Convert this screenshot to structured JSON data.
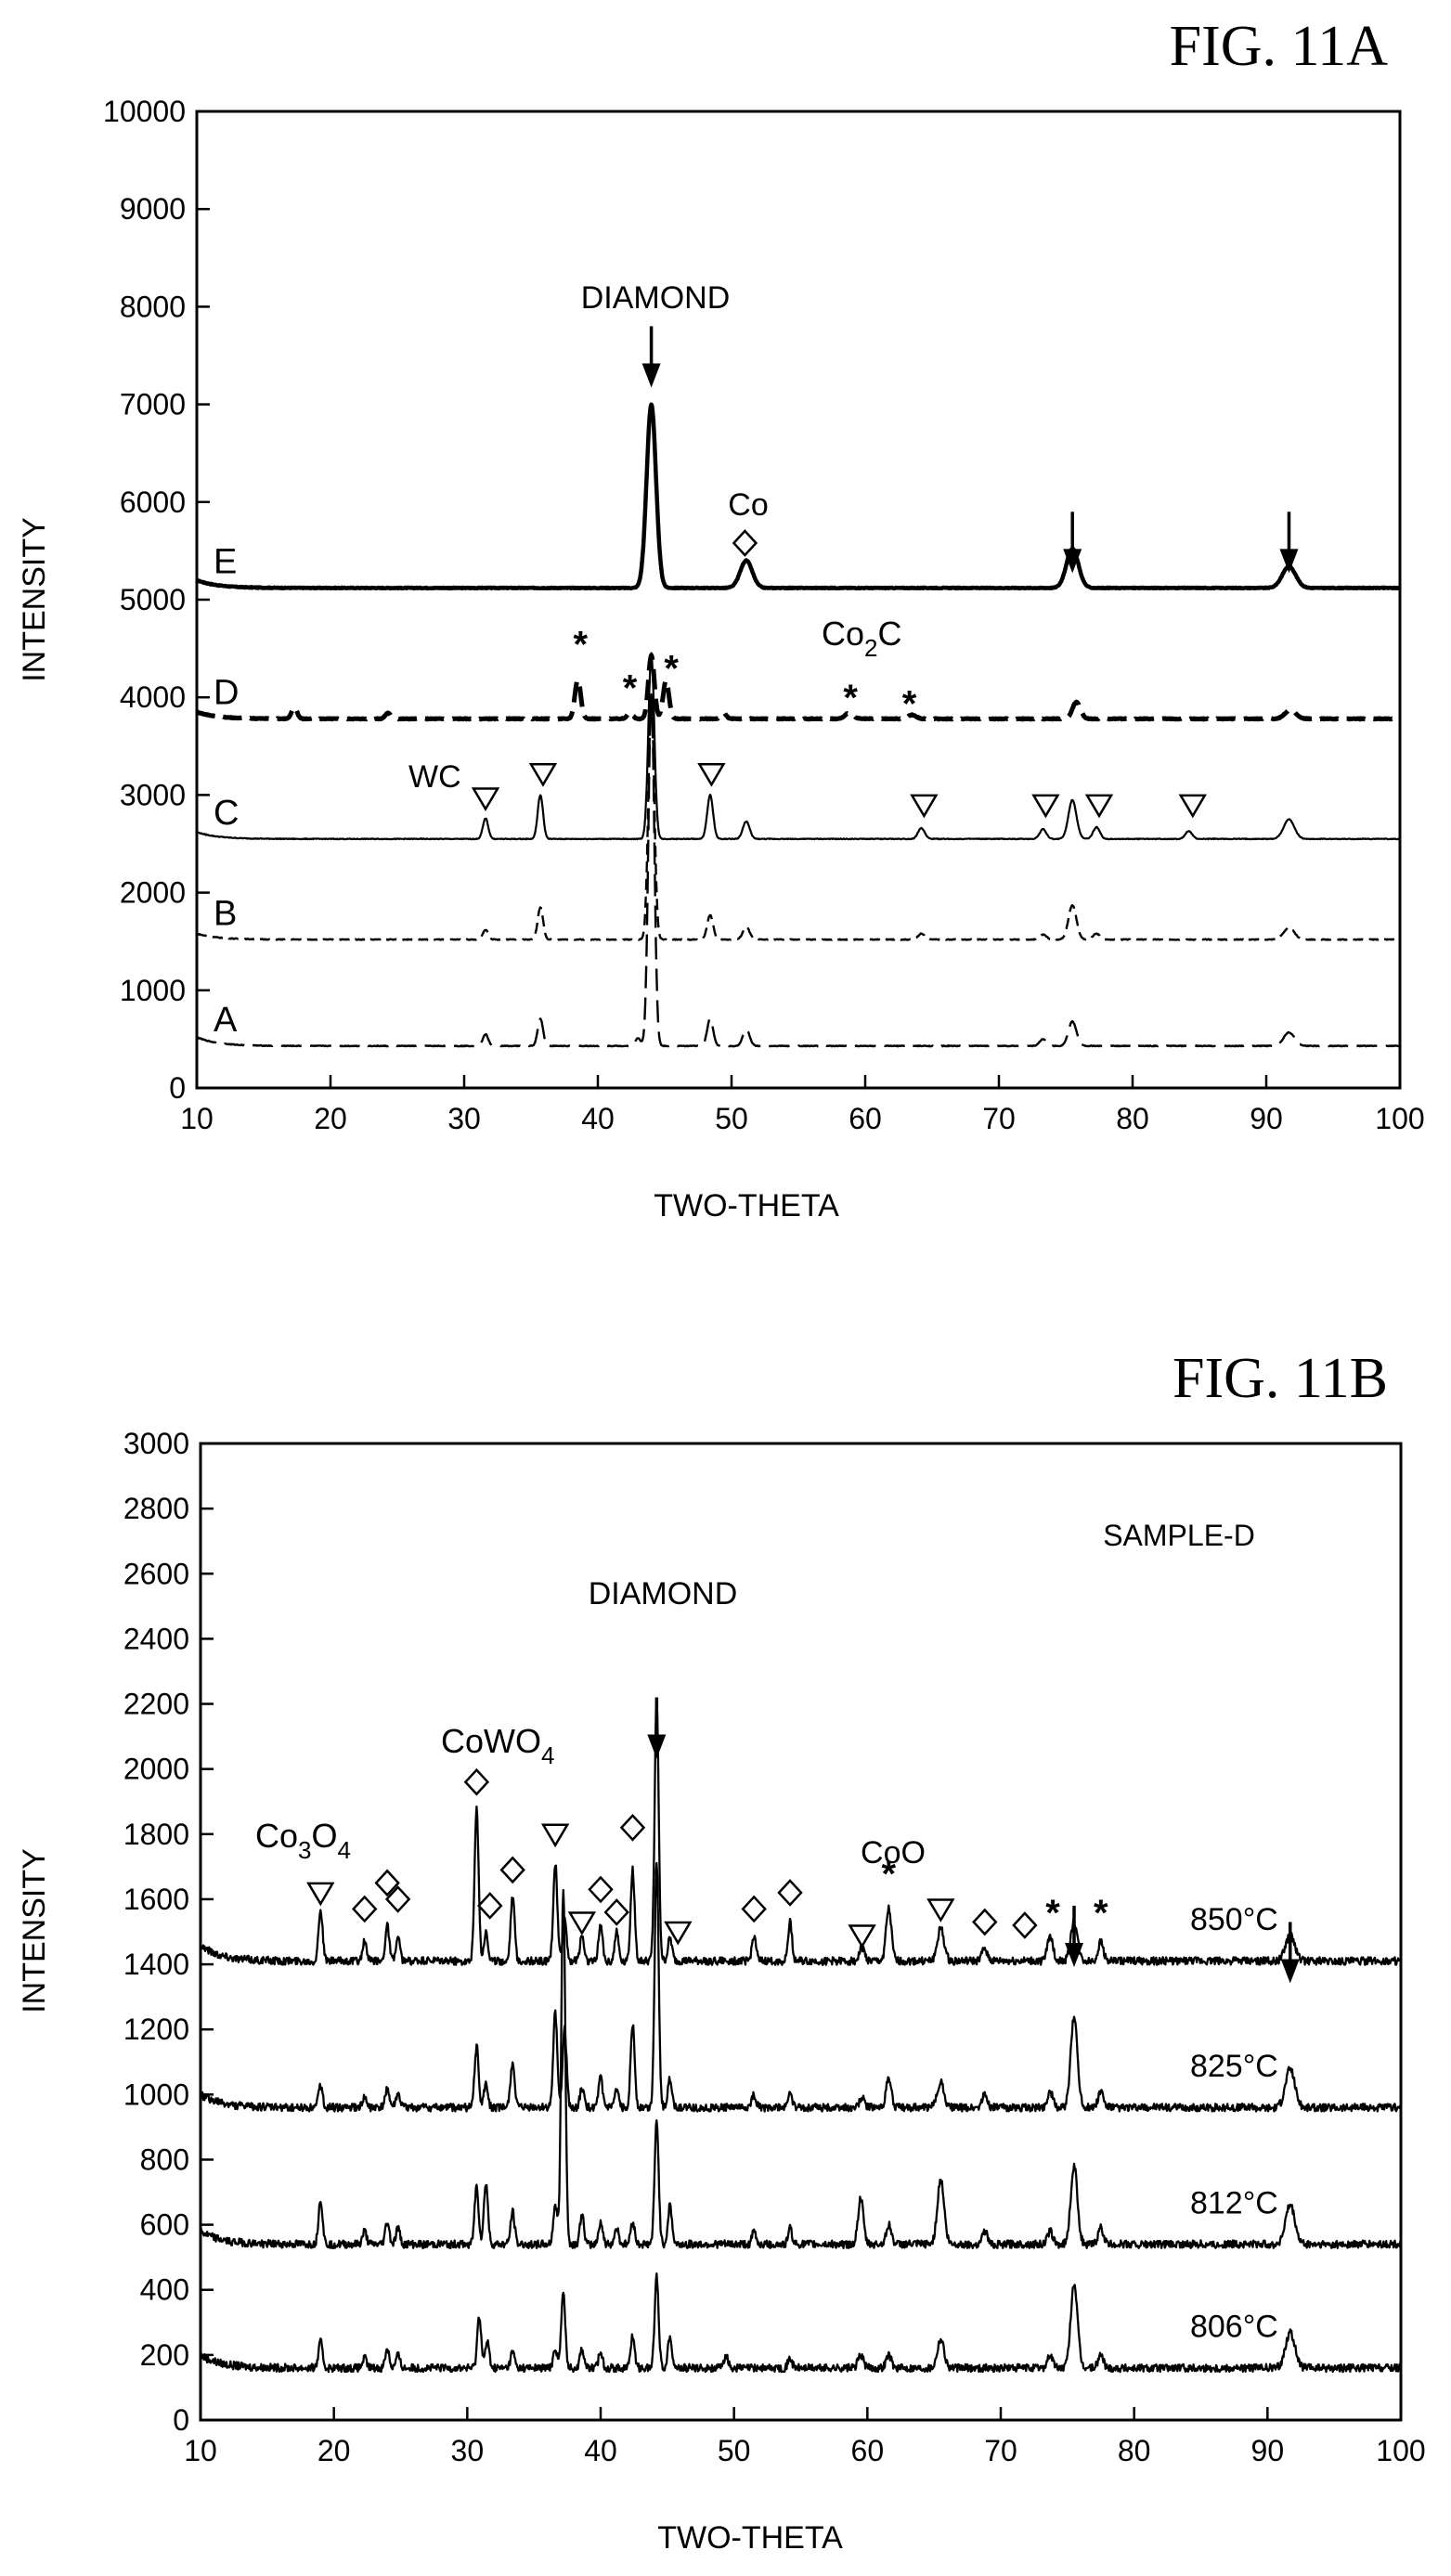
{
  "chart_data": [
    {
      "type": "line",
      "figure_label": "FIG. 11A",
      "xlabel": "TWO-THETA",
      "ylabel": "INTENSITY",
      "xlim": [
        10,
        100
      ],
      "ylim": [
        0,
        10000
      ],
      "xticks": [
        "10",
        "20",
        "30",
        "40",
        "50",
        "60",
        "70",
        "80",
        "90",
        "100"
      ],
      "yticks": [
        "0",
        "1000",
        "2000",
        "3000",
        "4000",
        "5000",
        "6000",
        "7000",
        "8000",
        "9000",
        "10000"
      ],
      "annotations": {
        "diamond": "DIAMOND",
        "co": "Co",
        "co2c_main": "Co",
        "co2c_sub": "2",
        "co2c_end": "C",
        "wc": "WC"
      },
      "series": [
        {
          "name": "E",
          "style": "solid-thick",
          "baseline": 5120,
          "start": 5200,
          "peaks": [
            [
              44.0,
              1880,
              0.35
            ],
            [
              51.1,
              280,
              0.45
            ],
            [
              75.5,
              400,
              0.45
            ],
            [
              91.7,
              220,
              0.5
            ]
          ]
        },
        {
          "name": "D",
          "style": "dashed-thick",
          "baseline": 3780,
          "start": 3850,
          "peaks": [
            [
              17.3,
              120,
              0.2
            ],
            [
              24.3,
              60,
              0.2
            ],
            [
              38.5,
              400,
              0.22
            ],
            [
              42.4,
              70,
              0.2
            ],
            [
              44.0,
              650,
              0.22
            ],
            [
              45.1,
              390,
              0.22
            ],
            [
              49.4,
              60,
              0.2
            ],
            [
              58.8,
              60,
              0.3
            ],
            [
              63.5,
              40,
              0.3
            ],
            [
              75.8,
              170,
              0.3
            ],
            [
              91.8,
              90,
              0.4
            ]
          ]
        },
        {
          "name": "C",
          "style": "solid-thin",
          "baseline": 2550,
          "start": 2620,
          "peaks": [
            [
              31.6,
              210,
              0.2
            ],
            [
              35.7,
              450,
              0.2
            ],
            [
              44.0,
              1900,
              0.22
            ],
            [
              48.4,
              450,
              0.22
            ],
            [
              51.1,
              180,
              0.25
            ],
            [
              64.2,
              110,
              0.25
            ],
            [
              73.3,
              100,
              0.25
            ],
            [
              75.5,
              400,
              0.3
            ],
            [
              77.3,
              120,
              0.25
            ],
            [
              84.2,
              80,
              0.25
            ],
            [
              91.7,
              200,
              0.4
            ]
          ]
        },
        {
          "name": "B",
          "style": "dashed-thin",
          "baseline": 1520,
          "start": 1580,
          "peaks": [
            [
              31.6,
              100,
              0.2
            ],
            [
              35.7,
              330,
              0.2
            ],
            [
              44.0,
              2450,
              0.22
            ],
            [
              48.4,
              250,
              0.22
            ],
            [
              51.1,
              130,
              0.25
            ],
            [
              64.2,
              60,
              0.25
            ],
            [
              73.3,
              50,
              0.25
            ],
            [
              75.5,
              350,
              0.3
            ],
            [
              77.3,
              60,
              0.25
            ],
            [
              91.7,
              120,
              0.4
            ]
          ]
        },
        {
          "name": "A",
          "style": "longdash-thin",
          "baseline": 430,
          "start": 520,
          "peaks": [
            [
              31.6,
              120,
              0.2
            ],
            [
              35.7,
              280,
              0.2
            ],
            [
              43.0,
              80,
              0.2
            ],
            [
              44.0,
              3600,
              0.22
            ],
            [
              48.4,
              280,
              0.22
            ],
            [
              51.1,
              170,
              0.25
            ],
            [
              73.3,
              70,
              0.25
            ],
            [
              75.5,
              250,
              0.3
            ],
            [
              91.7,
              140,
              0.4
            ]
          ]
        }
      ],
      "markers": {
        "diamond_arrows": [
          [
            44.0,
            7800
          ],
          [
            75.5,
            5900
          ],
          [
            91.7,
            5900
          ]
        ],
        "co_diamond": [
          [
            51.0,
            5580
          ]
        ],
        "co2c_stars": [
          [
            38.7,
            4550
          ],
          [
            42.4,
            4100
          ],
          [
            45.5,
            4300
          ],
          [
            58.9,
            4000
          ],
          [
            63.3,
            3940
          ]
        ],
        "wc_triangles": [
          [
            31.6,
            2970
          ],
          [
            35.9,
            3220
          ],
          [
            48.5,
            3220
          ],
          [
            64.4,
            2900
          ],
          [
            73.5,
            2900
          ],
          [
            77.5,
            2900
          ],
          [
            84.5,
            2900
          ]
        ]
      }
    },
    {
      "type": "line",
      "figure_label": "FIG. 11B",
      "xlabel": "TWO-THETA",
      "ylabel": "INTENSITY",
      "xlim": [
        10,
        100
      ],
      "ylim": [
        0,
        3000
      ],
      "xticks": [
        "10",
        "20",
        "30",
        "40",
        "50",
        "60",
        "70",
        "80",
        "90",
        "100"
      ],
      "yticks": [
        "0",
        "200",
        "400",
        "600",
        "800",
        "1000",
        "1200",
        "1400",
        "1600",
        "1800",
        "2000",
        "2200",
        "2400",
        "2600",
        "2800",
        "3000"
      ],
      "annotations": {
        "sample": "SAMPLE-D",
        "diamond": "DIAMOND",
        "cowo4_main": "CoWO",
        "cowo4_sub": "4",
        "co3o4_a": "Co",
        "co3o4_b": "3",
        "co3o4_c": "O",
        "co3o4_d": "4",
        "coo": "CoO"
      },
      "series": [
        {
          "name": "850°C",
          "baseline": 1410,
          "start": 1460,
          "peaks": [
            [
              19.0,
              160,
              0.15
            ],
            [
              22.3,
              60,
              0.15
            ],
            [
              24.0,
              110,
              0.15
            ],
            [
              24.8,
              70,
              0.15
            ],
            [
              30.7,
              470,
              0.15
            ],
            [
              31.4,
              90,
              0.15
            ],
            [
              33.4,
              200,
              0.15
            ],
            [
              36.6,
              300,
              0.15
            ],
            [
              37.3,
              130,
              0.15
            ],
            [
              38.6,
              80,
              0.15
            ],
            [
              40.0,
              110,
              0.15
            ],
            [
              41.2,
              90,
              0.15
            ],
            [
              42.4,
              280,
              0.15
            ],
            [
              44.2,
              800,
              0.15
            ],
            [
              45.2,
              70,
              0.15
            ],
            [
              51.5,
              80,
              0.15
            ],
            [
              54.2,
              120,
              0.15
            ],
            [
              59.6,
              40,
              0.2
            ],
            [
              61.6,
              160,
              0.2
            ],
            [
              65.5,
              100,
              0.25
            ],
            [
              68.8,
              40,
              0.2
            ],
            [
              73.7,
              80,
              0.2
            ],
            [
              75.5,
              120,
              0.25
            ],
            [
              77.5,
              60,
              0.2
            ],
            [
              91.7,
              80,
              0.35
            ]
          ]
        },
        {
          "name": "825°C",
          "baseline": 960,
          "start": 1000,
          "peaks": [
            [
              19.0,
              70,
              0.15
            ],
            [
              22.3,
              30,
              0.15
            ],
            [
              24.0,
              60,
              0.15
            ],
            [
              24.8,
              40,
              0.15
            ],
            [
              30.7,
              190,
              0.15
            ],
            [
              31.4,
              70,
              0.15
            ],
            [
              33.4,
              140,
              0.15
            ],
            [
              36.6,
              290,
              0.15
            ],
            [
              37.3,
              240,
              0.15
            ],
            [
              38.6,
              60,
              0.15
            ],
            [
              40.0,
              90,
              0.15
            ],
            [
              41.2,
              50,
              0.15
            ],
            [
              42.4,
              260,
              0.15
            ],
            [
              44.2,
              760,
              0.15
            ],
            [
              45.2,
              90,
              0.15
            ],
            [
              51.5,
              40,
              0.15
            ],
            [
              54.2,
              50,
              0.15
            ],
            [
              59.6,
              30,
              0.2
            ],
            [
              61.6,
              90,
              0.2
            ],
            [
              65.5,
              80,
              0.25
            ],
            [
              68.8,
              40,
              0.2
            ],
            [
              73.7,
              50,
              0.2
            ],
            [
              75.5,
              280,
              0.25
            ],
            [
              77.5,
              50,
              0.2
            ],
            [
              91.7,
              120,
              0.35
            ]
          ]
        },
        {
          "name": "812°C",
          "baseline": 540,
          "start": 580,
          "peaks": [
            [
              19.0,
              140,
              0.15
            ],
            [
              22.3,
              40,
              0.15
            ],
            [
              24.0,
              70,
              0.15
            ],
            [
              24.8,
              50,
              0.15
            ],
            [
              30.7,
              180,
              0.15
            ],
            [
              31.4,
              190,
              0.15
            ],
            [
              33.4,
              100,
              0.15
            ],
            [
              36.6,
              120,
              0.15
            ],
            [
              37.2,
              1100,
              0.15
            ],
            [
              38.6,
              90,
              0.15
            ],
            [
              40.0,
              70,
              0.15
            ],
            [
              41.2,
              50,
              0.15
            ],
            [
              42.4,
              70,
              0.15
            ],
            [
              44.2,
              380,
              0.15
            ],
            [
              45.2,
              120,
              0.15
            ],
            [
              51.5,
              40,
              0.15
            ],
            [
              54.2,
              50,
              0.15
            ],
            [
              59.5,
              140,
              0.2
            ],
            [
              61.6,
              60,
              0.2
            ],
            [
              65.5,
              200,
              0.25
            ],
            [
              68.8,
              40,
              0.2
            ],
            [
              73.7,
              40,
              0.2
            ],
            [
              75.5,
              240,
              0.25
            ],
            [
              77.5,
              50,
              0.2
            ],
            [
              91.7,
              120,
              0.35
            ]
          ]
        },
        {
          "name": "806°C",
          "baseline": 160,
          "start": 200,
          "peaks": [
            [
              19.0,
              80,
              0.15
            ],
            [
              22.3,
              30,
              0.15
            ],
            [
              24.0,
              60,
              0.15
            ],
            [
              24.8,
              40,
              0.15
            ],
            [
              30.9,
              160,
              0.15
            ],
            [
              31.5,
              80,
              0.15
            ],
            [
              33.4,
              50,
              0.15
            ],
            [
              36.6,
              60,
              0.15
            ],
            [
              37.2,
              230,
              0.15
            ],
            [
              38.6,
              60,
              0.15
            ],
            [
              40.0,
              50,
              0.15
            ],
            [
              42.4,
              100,
              0.15
            ],
            [
              44.2,
              280,
              0.15
            ],
            [
              45.2,
              100,
              0.15
            ],
            [
              49.4,
              40,
              0.15
            ],
            [
              54.2,
              30,
              0.15
            ],
            [
              59.5,
              40,
              0.2
            ],
            [
              61.6,
              40,
              0.2
            ],
            [
              65.5,
              90,
              0.25
            ],
            [
              73.7,
              40,
              0.2
            ],
            [
              75.5,
              260,
              0.25
            ],
            [
              77.5,
              40,
              0.2
            ],
            [
              91.7,
              110,
              0.35
            ]
          ]
        }
      ],
      "markers": {
        "diamond_arrows": [
          [
            44.2,
            2220
          ],
          [
            75.5,
            1580
          ],
          [
            91.7,
            1530
          ]
        ],
        "triangles": [
          [
            19.0,
            1620
          ],
          [
            36.6,
            1800
          ],
          [
            38.6,
            1530
          ],
          [
            45.8,
            1500
          ],
          [
            59.6,
            1490
          ],
          [
            65.5,
            1570
          ]
        ],
        "diamonds": [
          [
            22.3,
            1570
          ],
          [
            24.0,
            1650
          ],
          [
            24.8,
            1600
          ],
          [
            30.7,
            1960
          ],
          [
            31.7,
            1580
          ],
          [
            33.4,
            1690
          ],
          [
            40.0,
            1630
          ],
          [
            41.2,
            1560
          ],
          [
            42.4,
            1820
          ],
          [
            51.5,
            1570
          ],
          [
            54.2,
            1620
          ],
          [
            68.8,
            1530
          ],
          [
            71.8,
            1520
          ]
        ],
        "stars": [
          [
            61.6,
            1680
          ],
          [
            73.9,
            1560
          ],
          [
            77.5,
            1560
          ]
        ]
      }
    }
  ]
}
